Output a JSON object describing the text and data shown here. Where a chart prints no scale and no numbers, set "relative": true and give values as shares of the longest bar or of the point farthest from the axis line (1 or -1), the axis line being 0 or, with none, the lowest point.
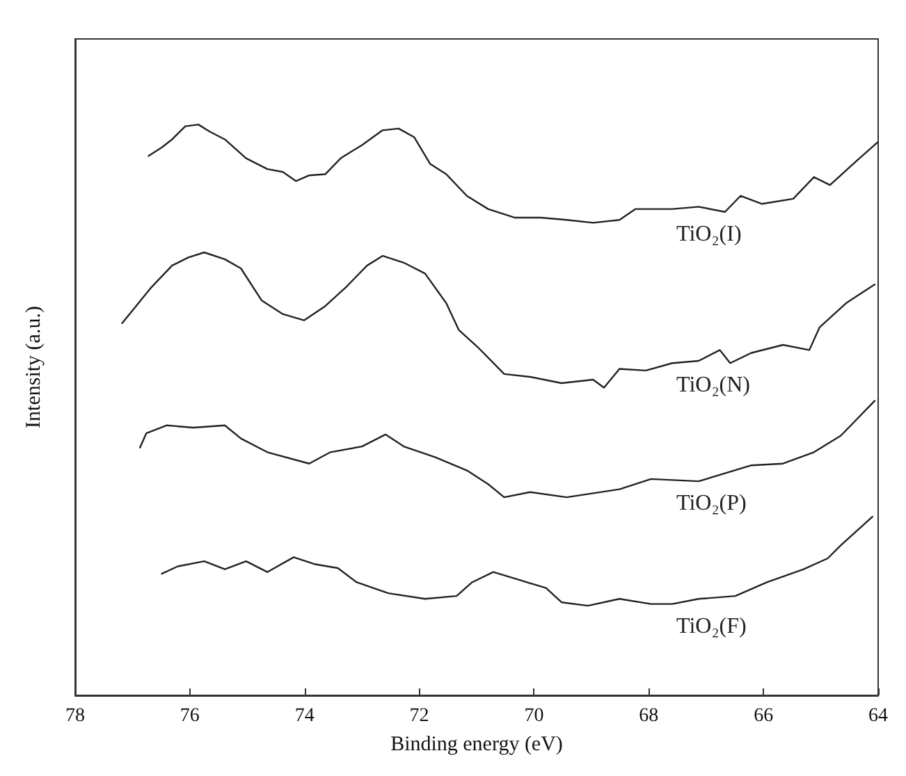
{
  "chart_data": {
    "type": "line",
    "xlabel": "Binding energy (eV)",
    "ylabel": "Intensity (a.u.)",
    "relative": true,
    "xlim": [
      78,
      64
    ],
    "xticks": [
      78,
      76,
      74,
      72,
      70,
      68,
      66,
      64
    ],
    "grid": false,
    "legend": false,
    "marker": "none",
    "line_style": "solid",
    "series": [
      {
        "name": "TiO₂(I)",
        "color": "#222222",
        "x": [
          76.72,
          76.49,
          76.31,
          76.08,
          75.85,
          75.66,
          75.39,
          75.02,
          74.65,
          74.38,
          74.15,
          73.92,
          73.64,
          73.37,
          73.0,
          72.64,
          72.36,
          72.09,
          71.81,
          71.53,
          71.17,
          70.8,
          70.34,
          69.88,
          69.43,
          68.97,
          68.51,
          68.23,
          67.59,
          67.13,
          66.67,
          66.4,
          66.03,
          65.48,
          65.12,
          64.84,
          64.38,
          64.01
        ],
        "values": [
          0.945,
          0.96,
          0.974,
          0.997,
          1,
          0.988,
          0.974,
          0.941,
          0.922,
          0.917,
          0.901,
          0.911,
          0.913,
          0.941,
          0.964,
          0.99,
          0.993,
          0.978,
          0.931,
          0.913,
          0.875,
          0.852,
          0.837,
          0.837,
          0.833,
          0.828,
          0.833,
          0.852,
          0.852,
          0.856,
          0.847,
          0.875,
          0.861,
          0.87,
          0.908,
          0.894,
          0.936,
          0.969
        ]
      },
      {
        "name": "TiO₂(N)",
        "color": "#222222",
        "x": [
          77.18,
          76.67,
          76.31,
          76.03,
          75.75,
          75.39,
          75.11,
          74.75,
          74.38,
          74.01,
          73.64,
          73.28,
          72.91,
          72.64,
          72.27,
          71.9,
          71.53,
          71.31,
          70.98,
          70.52,
          70.07,
          69.52,
          68.97,
          68.78,
          68.51,
          68.05,
          67.59,
          67.13,
          66.76,
          66.58,
          66.21,
          65.66,
          65.2,
          65.02,
          64.56,
          64.06
        ],
        "values": [
          0.652,
          0.715,
          0.753,
          0.767,
          0.776,
          0.764,
          0.748,
          0.692,
          0.668,
          0.657,
          0.682,
          0.715,
          0.753,
          0.77,
          0.758,
          0.739,
          0.687,
          0.64,
          0.61,
          0.563,
          0.558,
          0.547,
          0.553,
          0.539,
          0.572,
          0.569,
          0.582,
          0.586,
          0.605,
          0.582,
          0.6,
          0.614,
          0.605,
          0.645,
          0.687,
          0.72
        ]
      },
      {
        "name": "TiO₂(P)",
        "color": "#222222",
        "x": [
          76.87,
          76.76,
          76.4,
          75.94,
          75.39,
          75.11,
          74.65,
          73.92,
          73.55,
          73.0,
          72.59,
          72.27,
          71.72,
          71.17,
          70.8,
          70.52,
          70.07,
          69.43,
          68.51,
          67.96,
          67.13,
          66.21,
          65.66,
          65.12,
          64.65,
          64.06
        ],
        "values": [
          0.434,
          0.459,
          0.473,
          0.469,
          0.473,
          0.45,
          0.426,
          0.406,
          0.426,
          0.436,
          0.457,
          0.436,
          0.417,
          0.394,
          0.37,
          0.347,
          0.356,
          0.347,
          0.361,
          0.379,
          0.375,
          0.403,
          0.406,
          0.426,
          0.455,
          0.516
        ]
      },
      {
        "name": "TiO₂(F)",
        "color": "#222222",
        "x": [
          76.49,
          76.21,
          75.75,
          75.39,
          75.02,
          74.65,
          74.19,
          73.83,
          73.42,
          73.09,
          72.54,
          71.9,
          71.35,
          71.08,
          70.71,
          70.25,
          69.79,
          69.52,
          69.06,
          68.51,
          67.96,
          67.59,
          67.13,
          66.49,
          65.94,
          65.3,
          64.88,
          64.65,
          64.1
        ],
        "values": [
          0.213,
          0.226,
          0.235,
          0.221,
          0.235,
          0.216,
          0.242,
          0.23,
          0.223,
          0.198,
          0.179,
          0.169,
          0.174,
          0.198,
          0.216,
          0.202,
          0.188,
          0.163,
          0.157,
          0.169,
          0.16,
          0.16,
          0.169,
          0.174,
          0.198,
          0.221,
          0.24,
          0.263,
          0.313
        ]
      }
    ]
  }
}
